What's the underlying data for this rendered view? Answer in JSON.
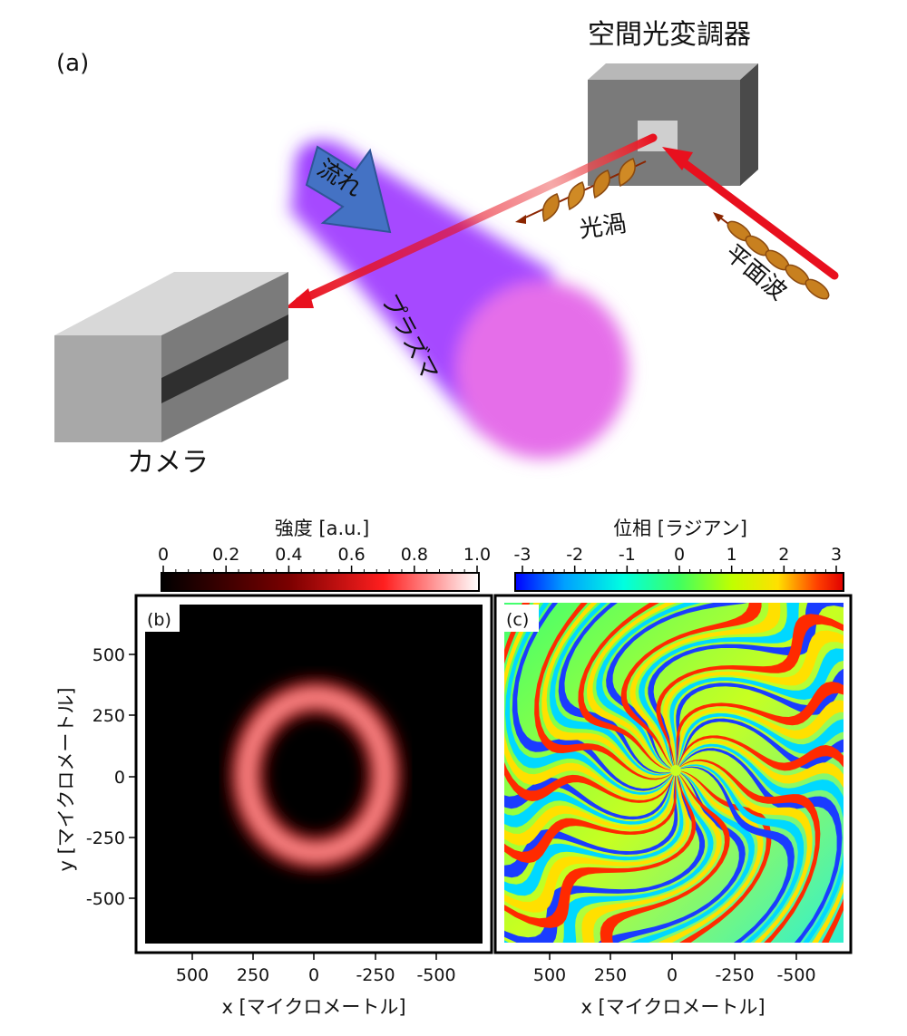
{
  "panel_a": {
    "label": "(a)",
    "slm_label": "空間光変調器",
    "flow_label": "流れ",
    "vortex_label": "光渦",
    "plane_wave_label": "平面波",
    "plasma_label": "プラズマ",
    "camera_label": "カメラ"
  },
  "colorbars": {
    "intensity": {
      "title": "強度 [a.u.]",
      "ticks": [
        "0",
        "0.2",
        "0.4",
        "0.6",
        "0.8",
        "1.0"
      ],
      "colors": [
        "#000000",
        "#7a0000",
        "#ff1f1f",
        "#ffffff"
      ]
    },
    "phase": {
      "title": "位相 [ラジアン]",
      "ticks": [
        "-3",
        "-2",
        "-1",
        "0",
        "1",
        "2",
        "3"
      ],
      "colors": [
        "#0000ff",
        "#00a0ff",
        "#00ffe0",
        "#40ff60",
        "#c0ff00",
        "#ffe000",
        "#ff4000",
        "#e00000"
      ]
    }
  },
  "panel_b": {
    "label": "(b)",
    "y_ticks": [
      "500",
      "250",
      "0",
      "-250",
      "-500"
    ],
    "x_ticks": [
      "500",
      "250",
      "0",
      "-250",
      "-500"
    ],
    "ylabel": "y [マイクロメートル]",
    "xlabel": "x [マイクロメートル]"
  },
  "panel_c": {
    "label": "(c)",
    "x_ticks": [
      "500",
      "250",
      "0",
      "-250",
      "-500"
    ],
    "xlabel": "x [マイクロメートル]"
  }
}
